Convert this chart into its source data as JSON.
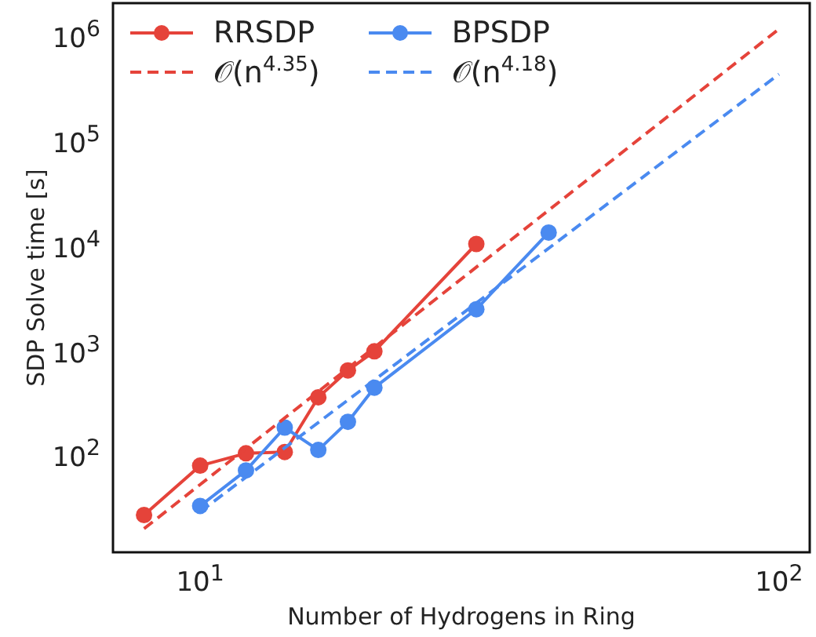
{
  "chart_data": {
    "type": "line",
    "xlabel": "Number of Hydrogens in Ring",
    "ylabel": "SDP Solve time [s]",
    "log": "xy",
    "legend": "top left",
    "xlim": [
      7.07,
      113
    ],
    "ylim": [
      11.9,
      2100000
    ],
    "xticks": [
      {
        "value": 10,
        "label": "10$^{1}$"
      },
      {
        "value": 100,
        "label": "10$^{2}$"
      }
    ],
    "yticks": [
      {
        "value": 100,
        "label": "10$^{2}$"
      },
      {
        "value": 1000,
        "label": "10$^{3}$"
      },
      {
        "value": 10000,
        "label": "10$^{4}$"
      },
      {
        "value": 100000,
        "label": "10$^{5}$"
      },
      {
        "value": 1000000,
        "label": "10$^{6}$"
      }
    ],
    "series": [
      {
        "name": "RRSDP",
        "color": "#e5433a",
        "marker": "circle",
        "line_style": "solid",
        "x": [
          8,
          10,
          12,
          14,
          16,
          18,
          20,
          30
        ],
        "values": [
          27,
          80,
          105,
          108,
          360,
          650,
          990,
          10500
        ]
      },
      {
        "name": "BPSDP",
        "color": "#4a8af0",
        "marker": "circle",
        "line_style": "solid",
        "x": [
          10,
          12,
          14,
          16,
          18,
          20,
          30,
          40
        ],
        "values": [
          33,
          72,
          185,
          113,
          210,
          445,
          2500,
          13500
        ]
      },
      {
        "name": "𝒪(n$^{4.35}$)",
        "color": "#e5433a",
        "marker": "none",
        "line_style": "dashed",
        "x": [
          8,
          100
        ],
        "values": [
          20,
          1190000
        ]
      },
      {
        "name": "𝒪(n$^{4.18}$)",
        "color": "#4a8af0",
        "marker": "none",
        "line_style": "dashed",
        "x": [
          10,
          100
        ],
        "values": [
          29,
          440000
        ]
      }
    ]
  }
}
